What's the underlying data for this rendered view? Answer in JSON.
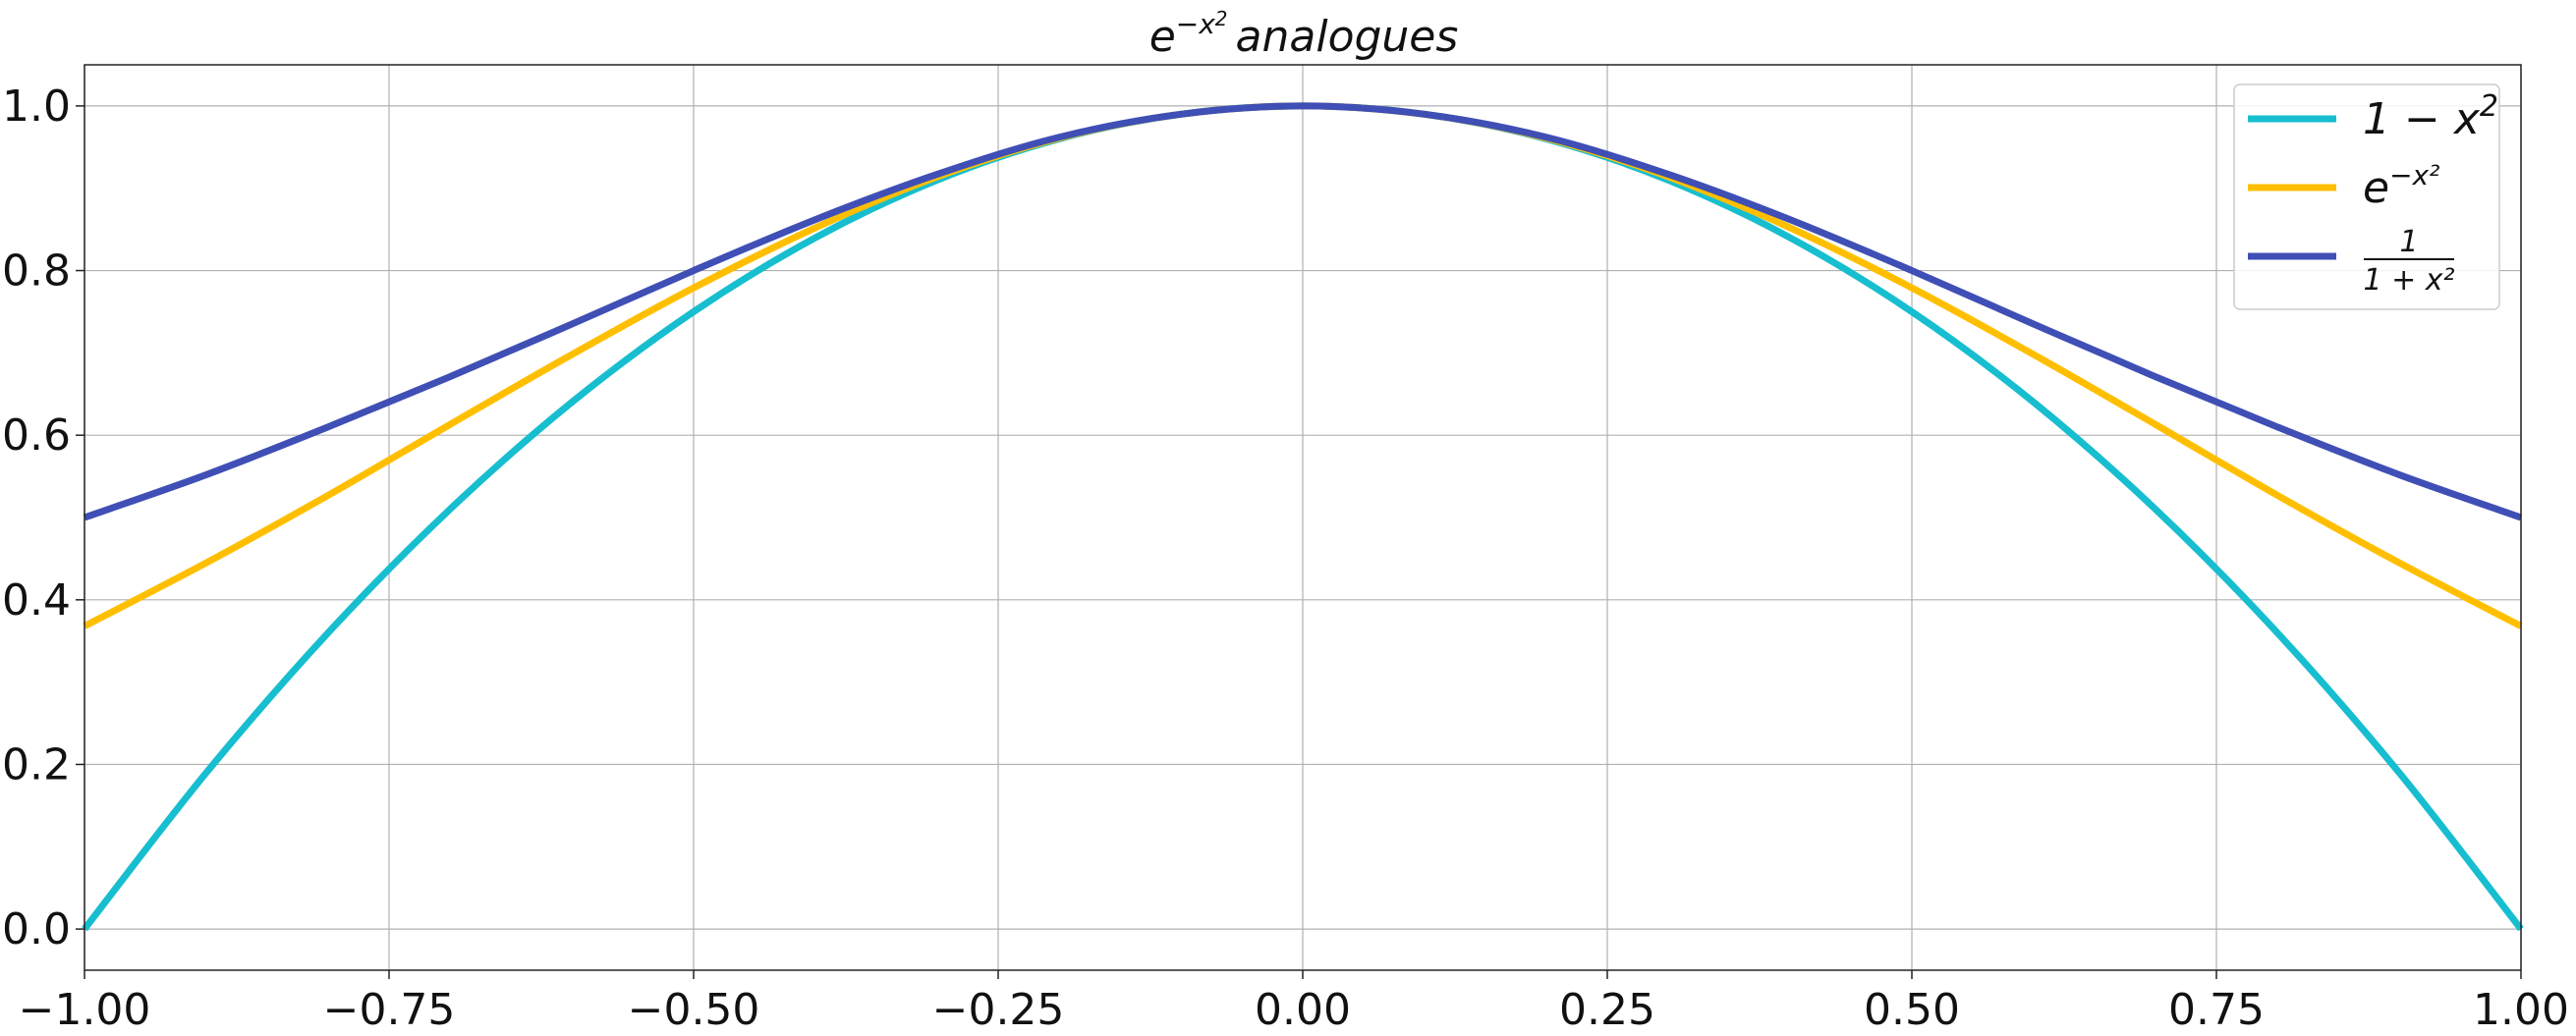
{
  "chart_data": {
    "type": "line",
    "title": {
      "base": "e",
      "exponent": "−x",
      "exponent_power": "2",
      "suffix": "analogues"
    },
    "xlabel": "",
    "ylabel": "",
    "xlim": [
      -1.0,
      1.0
    ],
    "ylim": [
      -0.05,
      1.05
    ],
    "grid": true,
    "legend_position": "top-right",
    "x_ticks": [
      -1.0,
      -0.75,
      -0.5,
      -0.25,
      0.0,
      0.25,
      0.5,
      0.75,
      1.0
    ],
    "x_tick_labels": [
      "−1.00",
      "−0.75",
      "−0.50",
      "−0.25",
      "0.00",
      "0.25",
      "0.50",
      "0.75",
      "1.00"
    ],
    "y_ticks": [
      0.0,
      0.2,
      0.4,
      0.6,
      0.8,
      1.0
    ],
    "y_tick_labels": [
      "0.0",
      "0.2",
      "0.4",
      "0.6",
      "0.8",
      "1.0"
    ],
    "x": [
      -1.0,
      -0.9,
      -0.8,
      -0.7,
      -0.6,
      -0.5,
      -0.4,
      -0.3,
      -0.2,
      -0.1,
      0.0,
      0.1,
      0.2,
      0.3,
      0.4,
      0.5,
      0.6,
      0.7,
      0.8,
      0.9,
      1.0
    ],
    "series": [
      {
        "name": "1 − x²",
        "legend_main": "1 − x",
        "legend_sup": "2",
        "color": "#17becf",
        "values": [
          0.0,
          0.19,
          0.36,
          0.51,
          0.64,
          0.75,
          0.84,
          0.91,
          0.96,
          0.99,
          1.0,
          0.99,
          0.96,
          0.91,
          0.84,
          0.75,
          0.64,
          0.51,
          0.36,
          0.19,
          0.0
        ]
      },
      {
        "name": "e^(−x²)",
        "legend_main": "e",
        "legend_sup": "−x²",
        "color": "#ffbf00",
        "values": [
          0.368,
          0.445,
          0.527,
          0.613,
          0.698,
          0.779,
          0.852,
          0.914,
          0.961,
          0.99,
          1.0,
          0.99,
          0.961,
          0.914,
          0.852,
          0.779,
          0.698,
          0.613,
          0.527,
          0.445,
          0.368
        ]
      },
      {
        "name": "1/(1+x²)",
        "legend_num": "1",
        "legend_den": "1 + x²",
        "color": "#3f4fb5",
        "values": [
          0.5,
          0.552,
          0.61,
          0.671,
          0.735,
          0.8,
          0.862,
          0.917,
          0.962,
          0.99,
          1.0,
          0.99,
          0.962,
          0.917,
          0.862,
          0.8,
          0.735,
          0.671,
          0.61,
          0.552,
          0.5
        ]
      }
    ]
  }
}
